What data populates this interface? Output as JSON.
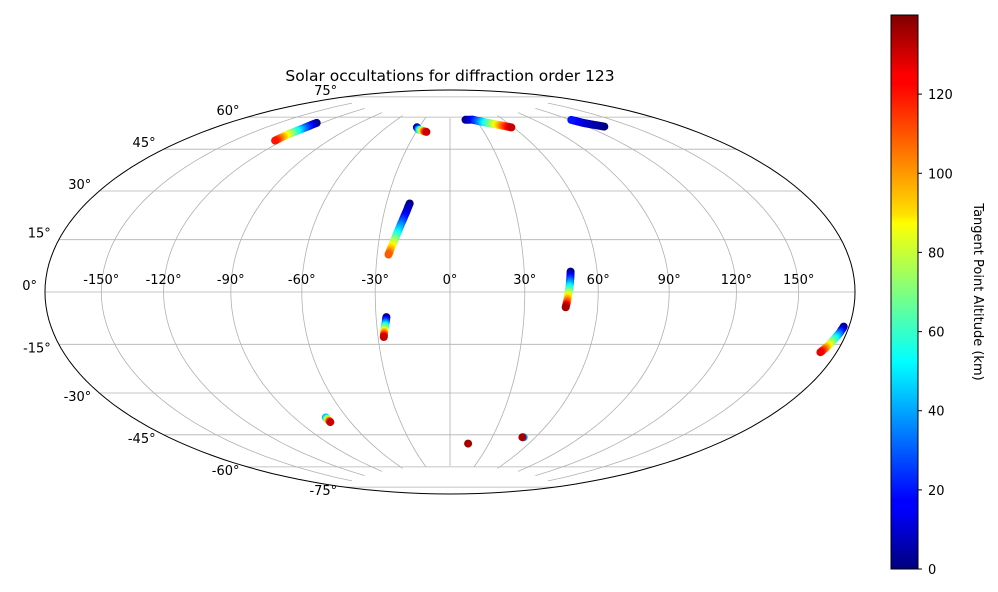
{
  "chart_data": {
    "type": "scatter",
    "projection": "hammer",
    "title": "Solar occultations for diffraction order 123",
    "xlabel": "",
    "ylabel": "",
    "lon_ticks": [
      -150,
      -120,
      -90,
      -60,
      -30,
      0,
      30,
      60,
      90,
      120,
      150
    ],
    "lon_tick_labels": [
      "-150°",
      "-120°",
      "-90°",
      "-60°",
      "-30°",
      "0°",
      "30°",
      "60°",
      "90°",
      "120°",
      "150°"
    ],
    "lat_ticks": [
      -75,
      -60,
      -45,
      -30,
      -15,
      0,
      15,
      30,
      45,
      60,
      75
    ],
    "lat_tick_labels": [
      "-75°",
      "-60°",
      "-45°",
      "-30°",
      "-15°",
      "0°",
      "15°",
      "30°",
      "45°",
      "60°",
      "75°"
    ],
    "grid": true,
    "colormap": "jet",
    "colorbar": {
      "label": "Tangent Point Altitude (km)",
      "range": [
        0,
        140
      ],
      "ticks": [
        0,
        20,
        40,
        60,
        80,
        100,
        120
      ],
      "tick_labels": [
        "0",
        "20",
        "40",
        "60",
        "80",
        "100",
        "120"
      ],
      "placement": "right"
    },
    "series": [
      {
        "points": [
          {
            "lon": -19,
            "lat": 36,
            "alt": 0
          },
          {
            "lon": -19.8,
            "lat": 33,
            "alt": 10
          },
          {
            "lon": -20.7,
            "lat": 30,
            "alt": 20
          },
          {
            "lon": -21.6,
            "lat": 27,
            "alt": 35
          },
          {
            "lon": -22.5,
            "lat": 24,
            "alt": 50
          },
          {
            "lon": -23.4,
            "lat": 21,
            "alt": 70
          },
          {
            "lon": -24.4,
            "lat": 18,
            "alt": 90
          },
          {
            "lon": -25.3,
            "lat": 15,
            "alt": 110
          }
        ]
      },
      {
        "points": [
          {
            "lon": -25.8,
            "lat": -10,
            "alt": 0
          },
          {
            "lon": -26.2,
            "lat": -12,
            "alt": 30
          },
          {
            "lon": -26.7,
            "lat": -14,
            "alt": 60
          },
          {
            "lon": -27.2,
            "lat": -16,
            "alt": 95
          },
          {
            "lon": -27.6,
            "lat": -18,
            "alt": 130
          }
        ]
      },
      {
        "points": [
          {
            "lon": 49,
            "lat": 8,
            "alt": 0
          },
          {
            "lon": 48.6,
            "lat": 5,
            "alt": 25
          },
          {
            "lon": 48.2,
            "lat": 2,
            "alt": 50
          },
          {
            "lon": 47.7,
            "lat": -1,
            "alt": 80
          },
          {
            "lon": 47.2,
            "lat": -4,
            "alt": 110
          },
          {
            "lon": 46.8,
            "lat": -6,
            "alt": 135
          }
        ]
      },
      {
        "points": [
          {
            "lon": 18,
            "lat": 74,
            "alt": 0
          },
          {
            "lon": 26,
            "lat": 74,
            "alt": 15
          },
          {
            "lon": 33,
            "lat": 73,
            "alt": 35
          },
          {
            "lon": 40,
            "lat": 72,
            "alt": 60
          },
          {
            "lon": 47,
            "lat": 71,
            "alt": 85
          },
          {
            "lon": 53,
            "lat": 70,
            "alt": 110
          },
          {
            "lon": 58,
            "lat": 69,
            "alt": 130
          }
        ]
      },
      {
        "points": [
          {
            "lon": -32,
            "lat": 70,
            "alt": 0
          },
          {
            "lon": -29,
            "lat": 69,
            "alt": 40
          },
          {
            "lon": -25,
            "lat": 68.5,
            "alt": 90
          },
          {
            "lon": -21,
            "lat": 68,
            "alt": 130
          }
        ]
      },
      {
        "points": [
          {
            "lon": -124,
            "lat": 66,
            "alt": 0
          },
          {
            "lon": -124,
            "lat": 63,
            "alt": 35
          },
          {
            "lon": -125,
            "lat": 60,
            "alt": 80
          },
          {
            "lon": -125,
            "lat": 57,
            "alt": 120
          }
        ]
      },
      {
        "points": [
          {
            "lon": 132,
            "lat": 63,
            "alt": 0
          },
          {
            "lon": 124,
            "lat": 66,
            "alt": 10
          },
          {
            "lon": 121,
            "lat": 68,
            "alt": 20
          }
        ]
      },
      {
        "points": [
          {
            "lon": 177,
            "lat": -10,
            "alt": 0
          },
          {
            "lon": 176,
            "lat": -12,
            "alt": 30
          },
          {
            "lon": 174.5,
            "lat": -14,
            "alt": 60
          },
          {
            "lon": 173,
            "lat": -16,
            "alt": 90
          },
          {
            "lon": 171,
            "lat": -18,
            "alt": 125
          }
        ]
      },
      {
        "points": [
          {
            "lon": -72,
            "lat": -50,
            "alt": 40
          },
          {
            "lon": -72,
            "lat": -52,
            "alt": 130
          }
        ]
      },
      {
        "points": [
          {
            "lon": 14,
            "lat": -64,
            "alt": 135
          }
        ]
      },
      {
        "points": [
          {
            "lon": 52,
            "lat": -60,
            "alt": 40
          },
          {
            "lon": 51,
            "lat": -60,
            "alt": 135
          }
        ]
      }
    ]
  }
}
